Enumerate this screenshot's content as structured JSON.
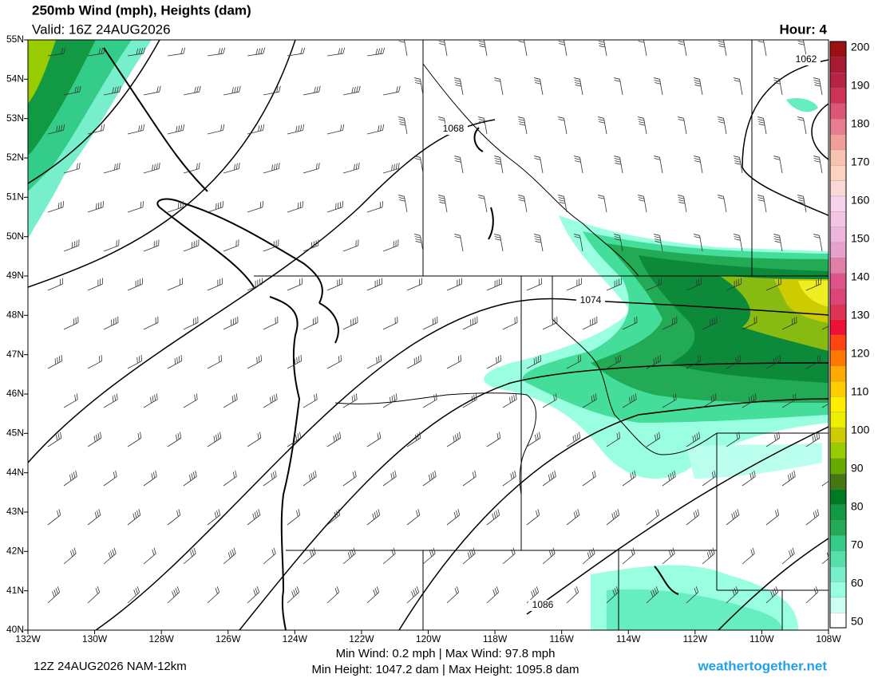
{
  "header": {
    "title": "250mb Wind (mph), Heights (dam)",
    "valid": "Valid: 16Z 24AUG2026",
    "hour": "Hour: 4"
  },
  "latitude_labels": [
    "55N",
    "54N",
    "53N",
    "52N",
    "51N",
    "50N",
    "49N",
    "48N",
    "47N",
    "46N",
    "45N",
    "44N",
    "43N",
    "42N",
    "41N",
    "40N"
  ],
  "longitude_labels": [
    "132W",
    "130W",
    "128W",
    "126W",
    "124W",
    "122W",
    "120W",
    "118W",
    "116W",
    "114W",
    "112W",
    "110W",
    "108W"
  ],
  "contour_labels": [
    "1062",
    "1068",
    "1074",
    "1086"
  ],
  "colorbar_labels": [
    200,
    190,
    180,
    170,
    160,
    150,
    140,
    130,
    120,
    110,
    100,
    90,
    80,
    70,
    60,
    50
  ],
  "footer": {
    "run": "12Z 24AUG2026 NAM-12km",
    "wind_stats": "Min Wind:  0.2 mph | Max Wind:  97.8 mph",
    "height_stats": "Min Height: 1047.2 dam | Max Height: 1095.8 dam",
    "site": "weathertogether.net"
  }
}
